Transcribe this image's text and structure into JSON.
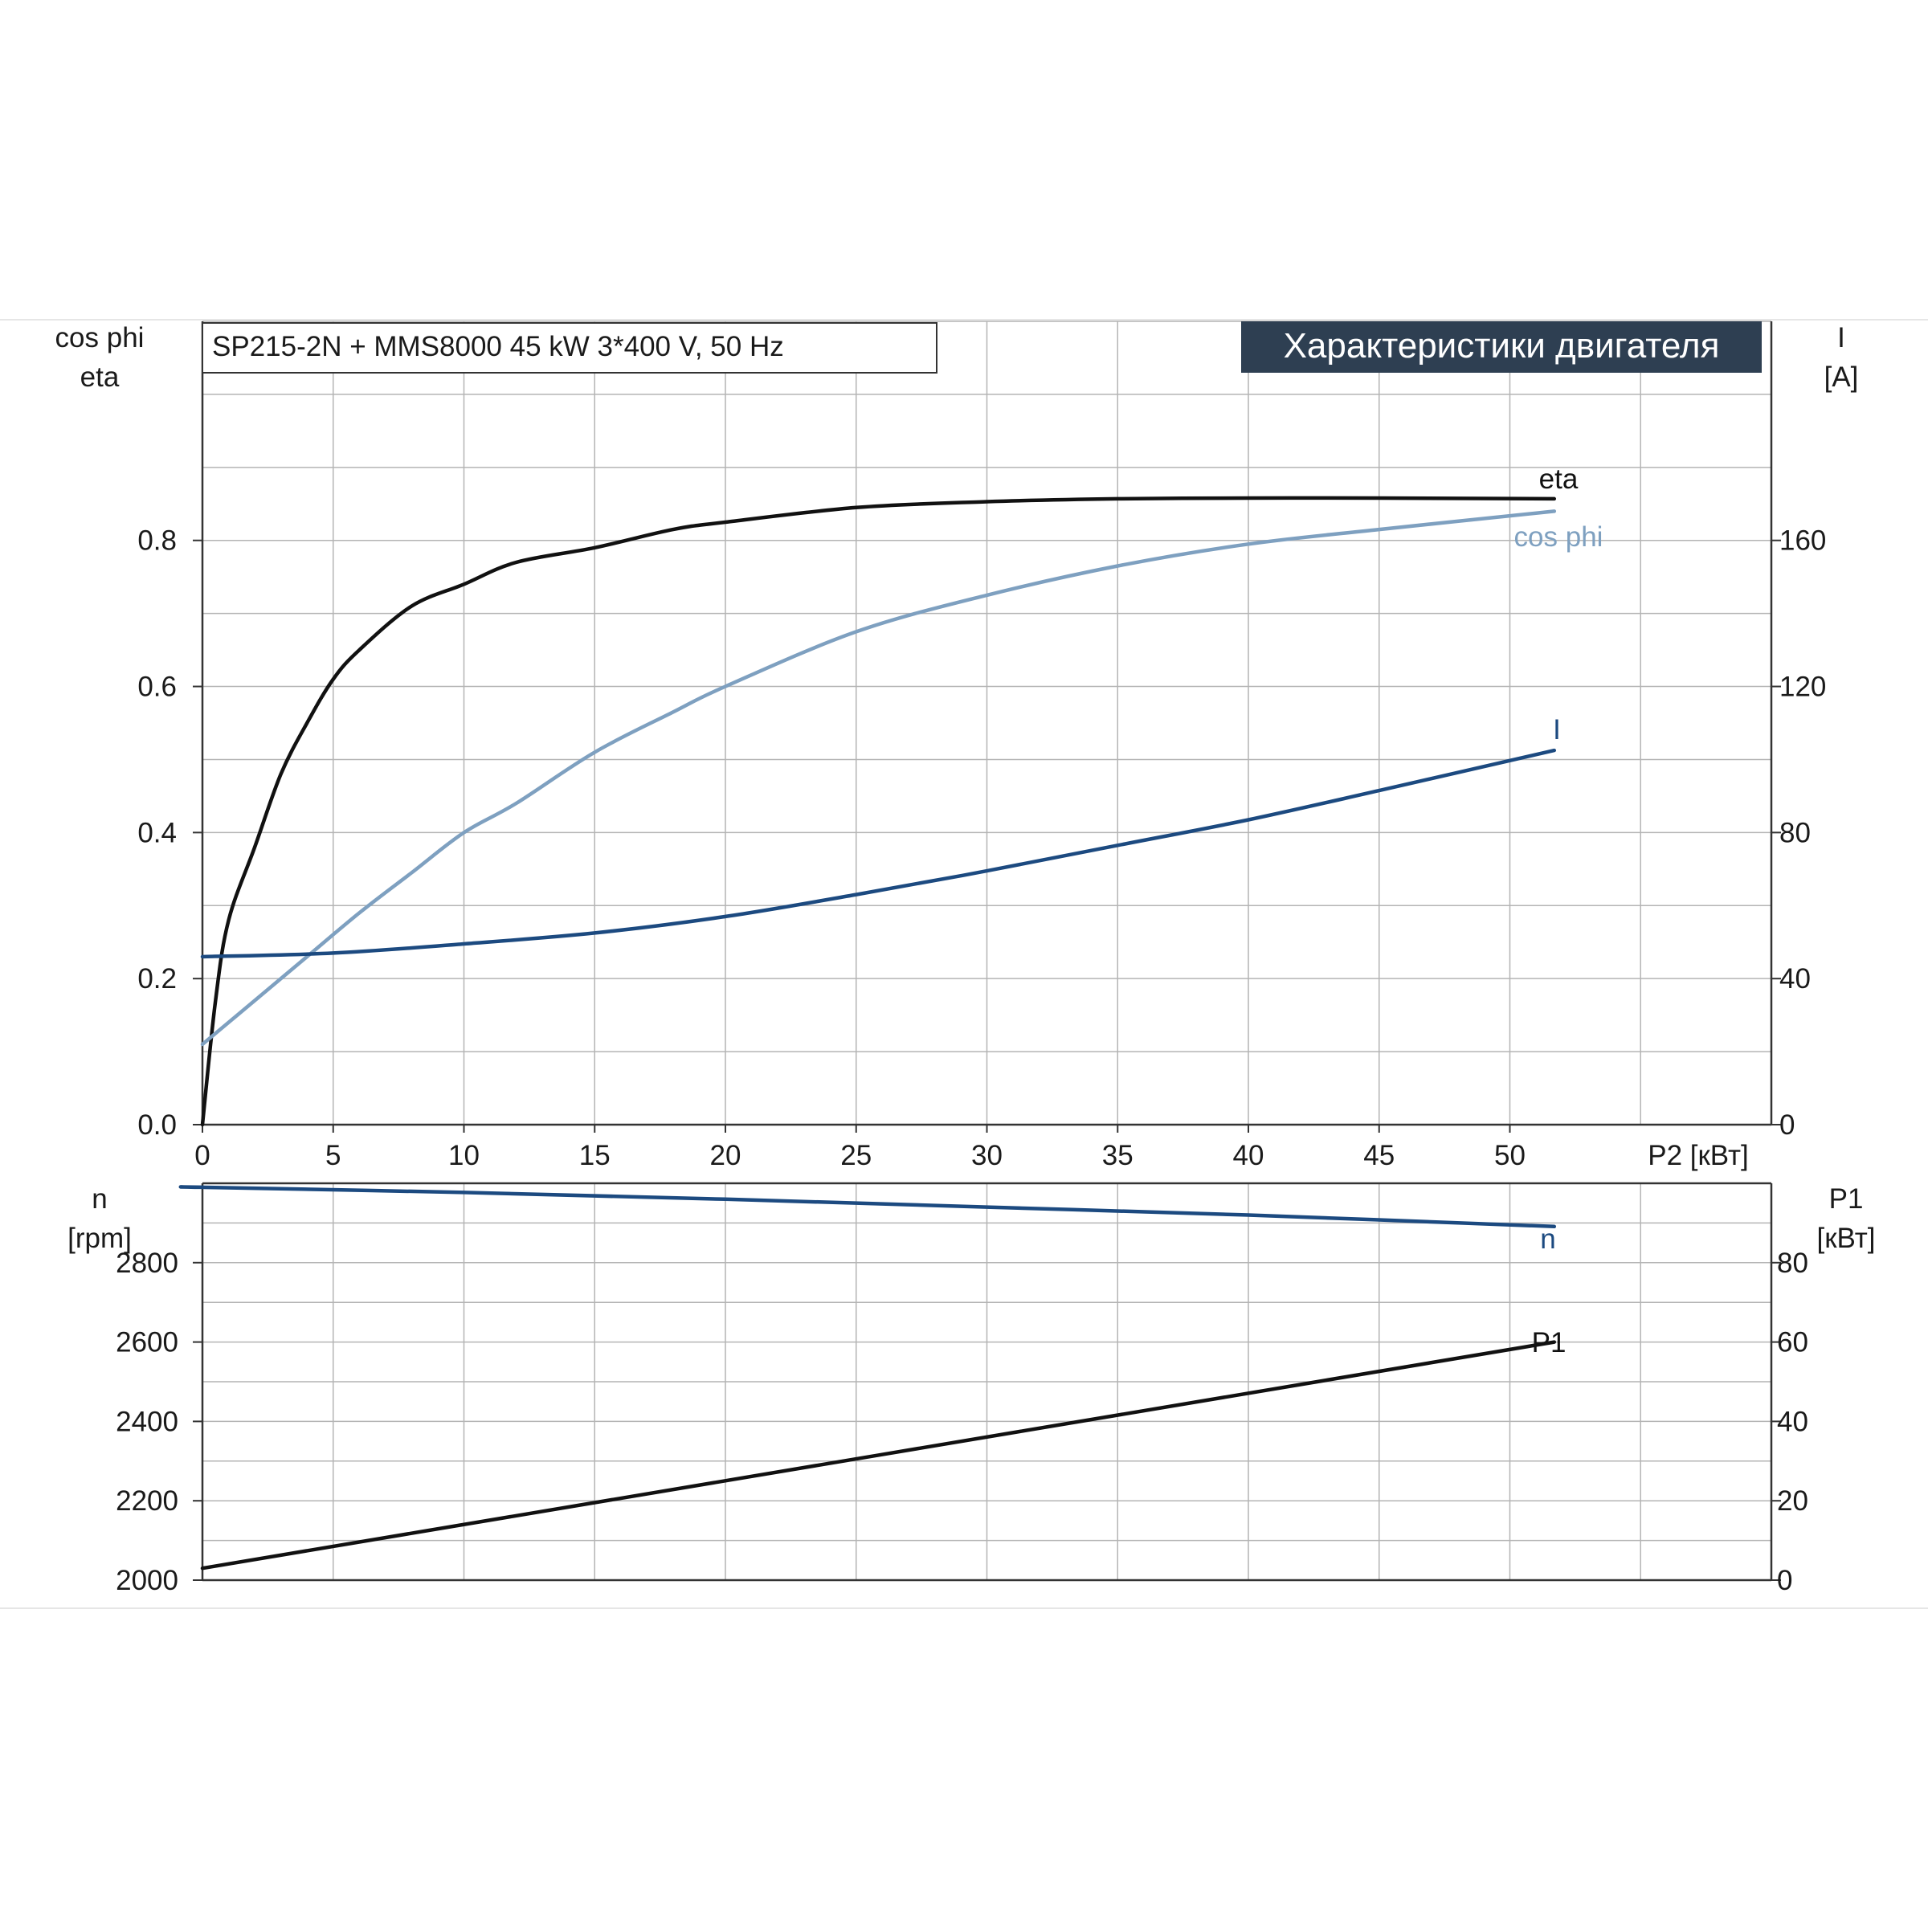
{
  "header": {
    "model_label": "SP215-2N + MMS8000   45 kW   3*400 V, 50 Hz",
    "title_banner": "Характеристики двигателя"
  },
  "colors": {
    "eta": "#111111",
    "cos_phi": "#7ea0c0",
    "current": "#1c4a80",
    "speed": "#1c4a80",
    "p1": "#111111",
    "banner_bg": "#2e3f52",
    "grid": "#b4b4b4"
  },
  "chart_data": [
    {
      "type": "line",
      "panel": "upper",
      "xlabel": "P2 [кВт]",
      "xlim": [
        0,
        60
      ],
      "x_ticks": [
        0,
        5,
        10,
        15,
        20,
        25,
        30,
        35,
        40,
        45,
        50
      ],
      "ylabel_left_lines": [
        "cos phi",
        "eta"
      ],
      "ylim_left": [
        0,
        1.1
      ],
      "y_ticks_left": [
        0.0,
        0.2,
        0.4,
        0.6,
        0.8
      ],
      "ylabel_right_lines": [
        "I",
        "[A]"
      ],
      "ylim_right": [
        0,
        220
      ],
      "y_ticks_right": [
        0,
        40,
        80,
        120,
        160
      ],
      "grid": true,
      "series": [
        {
          "name": "eta",
          "axis": "left",
          "x": [
            0,
            0.5,
            1,
            2,
            3,
            4,
            5,
            6,
            8,
            10,
            12,
            15,
            18,
            20,
            25,
            30,
            35,
            40,
            45,
            51.7
          ],
          "y": [
            0,
            0.17,
            0.28,
            0.38,
            0.48,
            0.55,
            0.61,
            0.65,
            0.71,
            0.74,
            0.77,
            0.79,
            0.815,
            0.825,
            0.845,
            0.853,
            0.857,
            0.858,
            0.858,
            0.857
          ]
        },
        {
          "name": "cos phi",
          "axis": "left",
          "x": [
            0,
            2,
            4,
            6,
            8,
            10,
            12,
            15,
            18,
            20,
            25,
            30,
            35,
            40,
            45,
            51.7
          ],
          "y": [
            0.11,
            0.17,
            0.23,
            0.29,
            0.345,
            0.4,
            0.44,
            0.51,
            0.565,
            0.6,
            0.675,
            0.725,
            0.765,
            0.795,
            0.815,
            0.84
          ]
        },
        {
          "name": "I",
          "axis": "right",
          "x": [
            0,
            5,
            10,
            15,
            20,
            25,
            30,
            35,
            40,
            45,
            51.7
          ],
          "y": [
            46,
            47,
            49.5,
            52.5,
            57,
            63,
            69.5,
            76.5,
            83.5,
            91.5,
            102.5
          ]
        }
      ]
    },
    {
      "type": "line",
      "panel": "lower",
      "xlim": [
        0,
        60
      ],
      "ylabel_left_lines": [
        "n",
        "[rpm]"
      ],
      "ylim_left": [
        2000,
        3000
      ],
      "y_ticks_left": [
        2000,
        2200,
        2400,
        2600,
        2800
      ],
      "ylabel_right_lines": [
        "P1",
        "[кВт]"
      ],
      "ylim_right": [
        0,
        100
      ],
      "y_ticks_right": [
        0,
        20,
        40,
        60,
        80
      ],
      "grid": true,
      "series": [
        {
          "name": "n",
          "axis": "left",
          "x": [
            -0.3,
            0,
            10,
            20,
            30,
            40,
            51.7
          ],
          "y": [
            2990,
            2990,
            2977,
            2960,
            2940,
            2920,
            2891
          ]
        },
        {
          "name": "P1",
          "axis": "right",
          "x": [
            0,
            51.7
          ],
          "y": [
            3,
            60
          ]
        }
      ]
    }
  ]
}
